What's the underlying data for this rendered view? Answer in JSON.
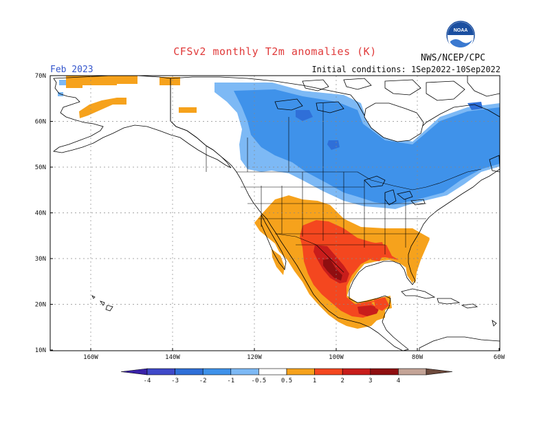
{
  "header": {
    "title": "CFSv2 monthly T2m anomalies (K)",
    "valid_month": "Feb 2023",
    "initial_conditions": "Initial conditions: 1Sep2022-10Sep2022",
    "agency": "NWS/NCEP/CPC",
    "logo_text": "NOAA"
  },
  "axes": {
    "lat_labels": [
      "70N",
      "60N",
      "50N",
      "40N",
      "30N",
      "20N",
      "10N"
    ],
    "lon_labels": [
      "160W",
      "140W",
      "120W",
      "100W",
      "80W",
      "60W"
    ]
  },
  "colorbar": {
    "tick_labels": [
      "-4",
      "-3",
      "-2",
      "-1",
      "-0.5",
      "0.5",
      "1",
      "2",
      "3",
      "4"
    ],
    "colors": {
      "lt_-4": "#3a22a8",
      "-4_-3": "#3f49c9",
      "-3_-2": "#2f6fd8",
      "-2_-1": "#3f92ea",
      "-1_-0.5": "#7db9f5",
      "-0.5_0.5": "#ffffff",
      "0.5_1": "#f6a21c",
      "1_2": "#f4471f",
      "2_3": "#c81d1b",
      "3_4": "#8f0e10",
      "4_5": "#c4a497",
      "gt_5": "#6e4a3d"
    }
  },
  "anomaly_regions": [
    {
      "name": "alaska-warm-north",
      "level": "0.5_1"
    },
    {
      "name": "alaska-warm-west",
      "level": "0.5_1"
    },
    {
      "name": "canada-cool-light",
      "level": "-1_-0.5"
    },
    {
      "name": "canada-cool-main",
      "level": "-2_-1"
    },
    {
      "name": "canada-cool-core",
      "level": "-3_-2"
    },
    {
      "name": "us-southwest-warm",
      "level": "0.5_1"
    },
    {
      "name": "us-south-central-warm",
      "level": "1_2"
    },
    {
      "name": "texas-mexico-hot",
      "level": "2_3"
    },
    {
      "name": "mexico-core-hot",
      "level": "3_4"
    },
    {
      "name": "gulf-coast-warm",
      "level": "1_2"
    },
    {
      "name": "southeast-warm",
      "level": "0.5_1"
    },
    {
      "name": "central-america-warm",
      "level": "1_2"
    }
  ]
}
